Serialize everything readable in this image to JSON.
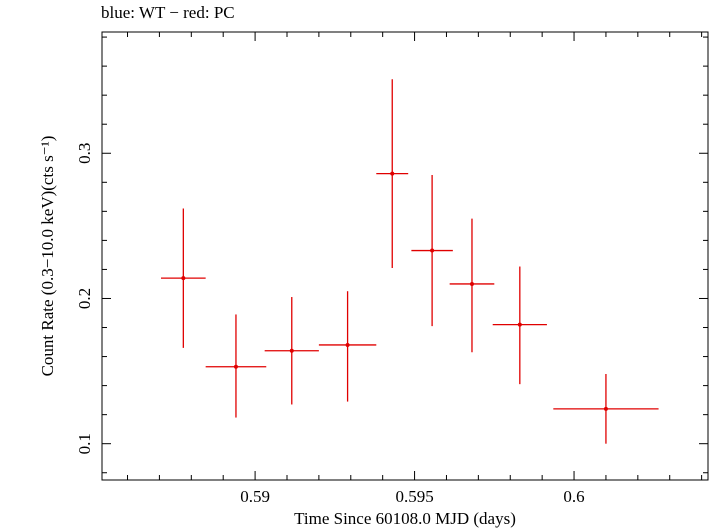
{
  "chart_data": {
    "type": "scatter",
    "title": "blue: WT − red: PC",
    "xlabel": "Time Since 60108.0 MJD (days)",
    "ylabel": "Count Rate (0.3−10.0 keV)(cts s⁻¹)",
    "xlim": [
      0.5852,
      0.6042
    ],
    "ylim": [
      0.075,
      0.3835
    ],
    "x_ticks": [
      {
        "value": 0.59,
        "label": "0.59"
      },
      {
        "value": 0.595,
        "label": "0.595"
      },
      {
        "value": 0.6,
        "label": "0.6"
      }
    ],
    "y_ticks": [
      {
        "value": 0.1,
        "label": "0.1"
      },
      {
        "value": 0.2,
        "label": "0.2"
      },
      {
        "value": 0.3,
        "label": "0.3"
      }
    ],
    "grid": false,
    "series": [
      {
        "color": "#e00000",
        "points": [
          {
            "x": 0.58775,
            "xerr": 0.0007,
            "y": 0.214,
            "ylo": 0.166,
            "yhi": 0.262
          },
          {
            "x": 0.5894,
            "xerr": 0.00095,
            "y": 0.153,
            "ylo": 0.118,
            "yhi": 0.189
          },
          {
            "x": 0.59115,
            "xerr": 0.00085,
            "y": 0.164,
            "ylo": 0.127,
            "yhi": 0.201
          },
          {
            "x": 0.5929,
            "xerr": 0.0009,
            "y": 0.168,
            "ylo": 0.129,
            "yhi": 0.205
          },
          {
            "x": 0.5943,
            "xerr": 0.0005,
            "y": 0.286,
            "ylo": 0.221,
            "yhi": 0.351
          },
          {
            "x": 0.59555,
            "xerr": 0.00065,
            "y": 0.233,
            "ylo": 0.181,
            "yhi": 0.285
          },
          {
            "x": 0.5968,
            "xerr": 0.0007,
            "y": 0.21,
            "ylo": 0.163,
            "yhi": 0.255
          },
          {
            "x": 0.5983,
            "xerr": 0.00085,
            "y": 0.182,
            "ylo": 0.141,
            "yhi": 0.222
          },
          {
            "x": 0.601,
            "xerr": 0.00165,
            "y": 0.124,
            "ylo": 0.1,
            "yhi": 0.148
          }
        ]
      }
    ]
  }
}
